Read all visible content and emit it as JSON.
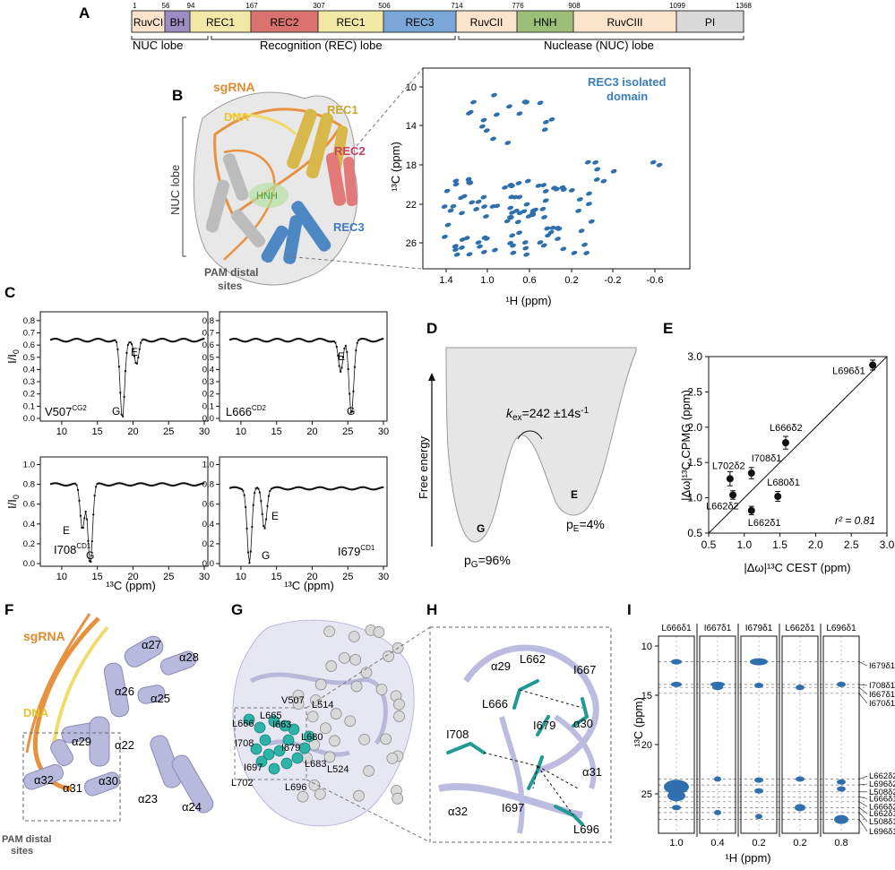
{
  "panels": {
    "A": "A",
    "B": "B",
    "C": "C",
    "D": "D",
    "E": "E",
    "F": "F",
    "G": "G",
    "H": "H",
    "I": "I"
  },
  "domain_bar": {
    "segments": [
      {
        "label": "RuvCI",
        "start": "1",
        "color": "#fbe3cc"
      },
      {
        "label": "BH",
        "start": "56",
        "color": "#9b8cc4"
      },
      {
        "label": "REC1",
        "start": "94",
        "color": "#f2e8a6"
      },
      {
        "label": "REC2",
        "start": "167",
        "color": "#d9716e"
      },
      {
        "label": "REC1",
        "start": "307",
        "color": "#f2e8a6"
      },
      {
        "label": "REC3",
        "start": "506",
        "color": "#7aa7d8"
      },
      {
        "label": "RuvCII",
        "start": "714",
        "color": "#fbe3cc"
      },
      {
        "label": "HNH",
        "start": "776",
        "color": "#9cbf78"
      },
      {
        "label": "RuvCIII",
        "start": "908",
        "color": "#fbe3cc"
      },
      {
        "label": "PI",
        "start": "1099",
        "color": "#d9d9d9"
      }
    ],
    "end": "1368",
    "lobes": [
      "NUC lobe",
      "Recognition (REC) lobe",
      "Nuclease (NUC) lobe"
    ]
  },
  "panel_b": {
    "structure_labels": {
      "sgrna": "sgRNA",
      "dna": "DNA",
      "rec1": "REC1",
      "rec2": "REC2",
      "hnh": "HNH",
      "rec3": "REC3",
      "nuc": "NUC lobe",
      "pam": "PAM distal sites"
    },
    "hsqc_title": "REC3 isolated domain",
    "xlabel": "¹H (ppm)",
    "ylabel": "¹³C (ppm)",
    "xticks": [
      "1.4",
      "1.0",
      "0.6",
      "0.2",
      "-0.2",
      "-0.6"
    ],
    "yticks": [
      "10",
      "14",
      "18",
      "22",
      "26"
    ]
  },
  "panel_c": {
    "ylabel": "I/I₀",
    "xlabel": "¹³C (ppm)",
    "xticks": [
      "10",
      "15",
      "20",
      "25",
      "30"
    ],
    "plots": [
      {
        "residue": "V507",
        "atom": "CG2",
        "g": "G",
        "e": "E",
        "yticks": [
          "0.0",
          "0.1",
          "0.2",
          "0.3",
          "0.4",
          "0.5",
          "0.6",
          "0.7",
          "0.8"
        ]
      },
      {
        "residue": "L666",
        "atom": "CD2",
        "g": "G",
        "e": "E",
        "yticks": [
          "0.0",
          "0.1",
          "0.2",
          "0.3",
          "0.4",
          "0.5",
          "0.6",
          "0.7",
          "0.8"
        ]
      },
      {
        "residue": "I708",
        "atom": "CD1",
        "g": "G",
        "e": "E",
        "yticks": [
          "0.0",
          "0.2",
          "0.4",
          "0.6",
          "0.8",
          "1.0"
        ]
      },
      {
        "residue": "I679",
        "atom": "CD1",
        "g": "G",
        "e": "E",
        "yticks": [
          "0.0",
          "0.2",
          "0.4",
          "0.6",
          "0.8",
          "1.0"
        ]
      }
    ]
  },
  "panel_d": {
    "ylabel": "Free energy",
    "kex": "k",
    "kex_sub": "ex",
    "kex_value": "=242 ±14s",
    "kex_sup": "-1",
    "g": "G",
    "e": "E",
    "pg": "p",
    "pg_sub": "G",
    "pg_val": "=96%",
    "pe": "p",
    "pe_sub": "E",
    "pe_val": "=4%"
  },
  "panel_e": {
    "ylabel": "|Δω|¹³C CPMG (ppm)",
    "xlabel": "|Δω|¹³C CEST (ppm)",
    "r2": "r² = 0.81",
    "xticks": [
      "0.5",
      "1.0",
      "1.5",
      "2.0",
      "2.5",
      "3.0"
    ],
    "yticks": [
      "0.5",
      "1.0",
      "1.5",
      "2.0",
      "2.5",
      "3.0"
    ]
  },
  "chart_data": {
    "type": "scatter",
    "xlabel": "|Δω|¹³C CEST (ppm)",
    "ylabel": "|Δω|¹³C CPMG (ppm)",
    "xlim": [
      0.5,
      3.0
    ],
    "ylim": [
      0.5,
      3.0
    ],
    "points": [
      {
        "label": "L696δ1",
        "x": 2.8,
        "y": 2.88,
        "err": 0.07
      },
      {
        "label": "L666δ2",
        "x": 1.58,
        "y": 1.78,
        "err": 0.09
      },
      {
        "label": "I708δ1",
        "x": 1.1,
        "y": 1.35,
        "err": 0.08
      },
      {
        "label": "L702δ2",
        "x": 0.8,
        "y": 1.27,
        "err": 0.1
      },
      {
        "label": "L680δ1",
        "x": 1.47,
        "y": 1.02,
        "err": 0.07
      },
      {
        "label": "L662δ2",
        "x": 0.84,
        "y": 1.04,
        "err": 0.06
      },
      {
        "label": "L662δ1",
        "x": 1.1,
        "y": 0.82,
        "err": 0.06
      }
    ],
    "annotation": "r² = 0.81"
  },
  "panel_f": {
    "sgrna": "sgRNA",
    "dna": "DNA",
    "pam": "PAM distal sites",
    "helices": [
      "α27",
      "α28",
      "α26",
      "α25",
      "α29",
      "α22",
      "α32",
      "α31",
      "α30",
      "α23",
      "α24"
    ]
  },
  "panel_g": {
    "residues": [
      "V507",
      "L514",
      "L665",
      "L666",
      "I663",
      "I708",
      "I679",
      "I697",
      "L680",
      "L683",
      "L524",
      "L702",
      "L696"
    ]
  },
  "panel_h": {
    "labels": [
      "α29",
      "L662",
      "I667",
      "L666",
      "I708",
      "I679",
      "α30",
      "α32",
      "α31",
      "I697",
      "L696"
    ]
  },
  "panel_i": {
    "columns": [
      "L666δ1",
      "I667δ1",
      "I679δ1",
      "L662δ1",
      "L696δ1"
    ],
    "col_xticks": [
      "1.0",
      "0.4",
      "0.2",
      "0.2",
      "0.8"
    ],
    "right_labels": [
      "I679δ1",
      "I708δ1",
      "I667δ1",
      "I670δ1",
      "L662δ2",
      "L696δ2",
      "L508δ2",
      "L666δ1",
      "L666δ2",
      "L662δ1",
      "L508δ1",
      "L696δ1"
    ],
    "yticks": [
      "10",
      "15",
      "20",
      "25"
    ],
    "ylabel": "¹³C (ppm)",
    "xlabel": "¹H (ppm)"
  }
}
